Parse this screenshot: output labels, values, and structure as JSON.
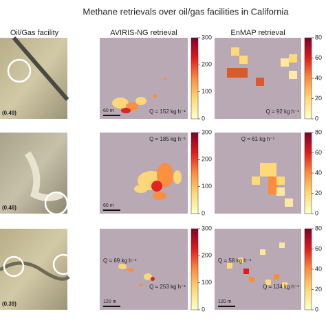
{
  "title": "Methane retrievals over oil/gas facilities in California",
  "columns": [
    "Oil/Gas facility",
    "AVIRIS-NG retrieval",
    "EnMAP retrieval"
  ],
  "rows": [
    {
      "score": "(0.49)",
      "aviris": {
        "scale": "60 m",
        "annotations": [
          "Q = 152 kg h⁻¹"
        ]
      },
      "enmap": {
        "annotations": [
          "Q = 92 kg h⁻¹"
        ]
      }
    },
    {
      "score": "(0.46)",
      "aviris": {
        "scale": "60 m",
        "annotations": [
          "Q = 185 kg h⁻¹"
        ]
      },
      "enmap": {
        "annotations": [
          "Q = 61 kg h⁻¹"
        ]
      }
    },
    {
      "score": "(0.39)",
      "aviris": {
        "scale": "120 m",
        "annotations": [
          "Q = 69 kg h⁻¹",
          "Q = 253 kg h⁻¹"
        ]
      },
      "enmap": {
        "scale": "120 m",
        "annotations": [
          "Q = 58 kg h⁻¹",
          "Q = 134 kg h⁻¹"
        ]
      }
    }
  ],
  "colorbars": {
    "aviris": {
      "lim": [
        0,
        300
      ],
      "ticks": [
        0,
        100,
        200,
        300
      ]
    },
    "enmap": {
      "lim": [
        0,
        80
      ],
      "ticks": [
        0,
        20,
        40,
        60,
        80
      ]
    }
  }
}
